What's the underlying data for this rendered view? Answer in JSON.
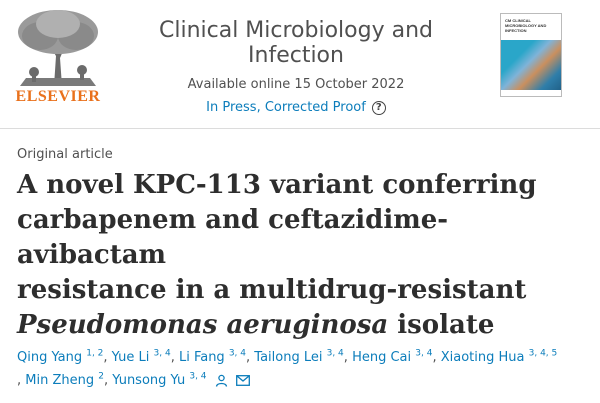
{
  "header": {
    "publisher": "ELSEVIER",
    "journal_title": "Clinical Microbiology and Infection",
    "available_online": "Available online 15 October 2022",
    "status_link": "In Press, Corrected Proof",
    "help_icon": "?",
    "cover_title": "CM CLINICAL MICROBIOLOGY AND INFECTION"
  },
  "article": {
    "type": "Original article",
    "title_line1": "A novel KPC-113 variant conferring",
    "title_line2": "carbapenem and ceftazidime-avibactam",
    "title_line3": "resistance in a multidrug-resistant",
    "title_italic": "Pseudomonas aeruginosa",
    "title_tail": " isolate"
  },
  "authors": [
    {
      "name": "Qing Yang",
      "affil": "1, 2"
    },
    {
      "name": "Yue Li",
      "affil": "3, 4"
    },
    {
      "name": "Li Fang",
      "affil": "3, 4"
    },
    {
      "name": "Tailong Lei",
      "affil": "3, 4"
    },
    {
      "name": "Heng Cai",
      "affil": "3, 4"
    },
    {
      "name": "Xiaoting Hua",
      "affil": "3, 4, 5"
    },
    {
      "name": "Min Zheng",
      "affil": "2"
    },
    {
      "name": "Yunsong Yu",
      "affil": "3, 4"
    }
  ],
  "icons": {
    "person": "person-icon",
    "mail": "mail-icon"
  },
  "colors": {
    "link": "#0c7dbb",
    "elsevier_orange": "#e9711c"
  }
}
